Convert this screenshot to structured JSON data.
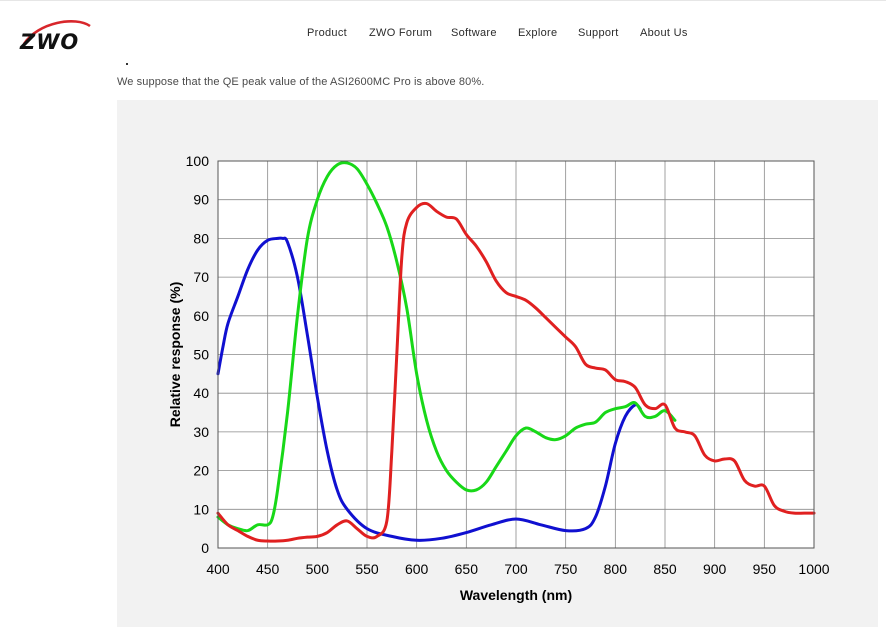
{
  "brand": {
    "logo_text": "ZWO",
    "logo_color": "#d8262b"
  },
  "nav": {
    "items": [
      {
        "label": "Product"
      },
      {
        "label": "ZWO Forum"
      },
      {
        "label": "Software"
      },
      {
        "label": "Explore"
      },
      {
        "label": "Support"
      },
      {
        "label": "About Us"
      }
    ]
  },
  "content": {
    "caption": "We suppose that the QE peak value of the ASI2600MC Pro is above 80%."
  },
  "chart_data": {
    "type": "line",
    "xlabel": "Wavelength (nm)",
    "ylabel": "Relative response (%)",
    "xlim": [
      400,
      1000
    ],
    "ylim": [
      0,
      100
    ],
    "xticks": [
      400,
      450,
      500,
      550,
      600,
      650,
      700,
      750,
      800,
      850,
      900,
      950,
      1000
    ],
    "yticks": [
      0,
      10,
      20,
      30,
      40,
      50,
      60,
      70,
      80,
      90,
      100
    ],
    "grid": true,
    "legend": "none",
    "series": [
      {
        "color": "#1010d0",
        "points": [
          [
            400,
            45
          ],
          [
            405,
            52
          ],
          [
            410,
            58
          ],
          [
            420,
            65
          ],
          [
            430,
            72
          ],
          [
            440,
            77
          ],
          [
            450,
            79.5
          ],
          [
            460,
            80
          ],
          [
            465,
            80
          ],
          [
            470,
            79
          ],
          [
            480,
            70
          ],
          [
            490,
            55
          ],
          [
            500,
            39
          ],
          [
            510,
            25
          ],
          [
            520,
            15
          ],
          [
            530,
            10
          ],
          [
            550,
            5
          ],
          [
            575,
            3
          ],
          [
            600,
            2
          ],
          [
            625,
            2.5
          ],
          [
            650,
            4
          ],
          [
            675,
            6
          ],
          [
            700,
            7.5
          ],
          [
            725,
            6
          ],
          [
            750,
            4.5
          ],
          [
            770,
            5
          ],
          [
            780,
            8
          ],
          [
            790,
            16
          ],
          [
            800,
            27
          ],
          [
            810,
            34
          ],
          [
            820,
            37
          ],
          [
            825,
            36
          ]
        ]
      },
      {
        "color": "#18d818",
        "points": [
          [
            400,
            8
          ],
          [
            410,
            6
          ],
          [
            420,
            5
          ],
          [
            430,
            4.5
          ],
          [
            440,
            6
          ],
          [
            450,
            6
          ],
          [
            455,
            8
          ],
          [
            460,
            15
          ],
          [
            470,
            35
          ],
          [
            480,
            60
          ],
          [
            490,
            80
          ],
          [
            500,
            90
          ],
          [
            510,
            96
          ],
          [
            520,
            99
          ],
          [
            530,
            99.5
          ],
          [
            540,
            98
          ],
          [
            550,
            94
          ],
          [
            560,
            89
          ],
          [
            570,
            83
          ],
          [
            580,
            74
          ],
          [
            590,
            62
          ],
          [
            600,
            45
          ],
          [
            610,
            33
          ],
          [
            620,
            25
          ],
          [
            630,
            20
          ],
          [
            640,
            17
          ],
          [
            650,
            15
          ],
          [
            660,
            15
          ],
          [
            670,
            17
          ],
          [
            680,
            21
          ],
          [
            690,
            25
          ],
          [
            700,
            29
          ],
          [
            710,
            31
          ],
          [
            720,
            30
          ],
          [
            730,
            28.5
          ],
          [
            740,
            28
          ],
          [
            750,
            29
          ],
          [
            760,
            31
          ],
          [
            770,
            32
          ],
          [
            780,
            32.5
          ],
          [
            790,
            35
          ],
          [
            800,
            36
          ],
          [
            810,
            36.5
          ],
          [
            820,
            37.5
          ],
          [
            830,
            34
          ],
          [
            840,
            34
          ],
          [
            850,
            35.5
          ],
          [
            860,
            33
          ]
        ]
      },
      {
        "color": "#e02020",
        "points": [
          [
            400,
            9
          ],
          [
            410,
            6
          ],
          [
            420,
            4.5
          ],
          [
            430,
            3
          ],
          [
            440,
            2
          ],
          [
            450,
            1.8
          ],
          [
            460,
            1.8
          ],
          [
            470,
            2
          ],
          [
            480,
            2.5
          ],
          [
            490,
            2.8
          ],
          [
            500,
            3
          ],
          [
            510,
            4
          ],
          [
            520,
            6
          ],
          [
            530,
            7
          ],
          [
            540,
            5
          ],
          [
            550,
            3
          ],
          [
            560,
            3
          ],
          [
            570,
            7
          ],
          [
            575,
            25
          ],
          [
            580,
            50
          ],
          [
            585,
            75
          ],
          [
            590,
            84
          ],
          [
            600,
            88
          ],
          [
            610,
            89
          ],
          [
            620,
            87
          ],
          [
            630,
            85.5
          ],
          [
            640,
            85
          ],
          [
            650,
            81
          ],
          [
            660,
            78
          ],
          [
            670,
            74
          ],
          [
            680,
            69
          ],
          [
            690,
            66
          ],
          [
            700,
            65
          ],
          [
            710,
            64
          ],
          [
            720,
            62
          ],
          [
            730,
            59.5
          ],
          [
            740,
            57
          ],
          [
            750,
            54.5
          ],
          [
            760,
            52
          ],
          [
            770,
            47.5
          ],
          [
            780,
            46.5
          ],
          [
            790,
            46
          ],
          [
            800,
            43.5
          ],
          [
            810,
            43
          ],
          [
            820,
            41.5
          ],
          [
            830,
            37
          ],
          [
            840,
            36
          ],
          [
            850,
            37
          ],
          [
            860,
            31
          ],
          [
            870,
            30
          ],
          [
            880,
            29
          ],
          [
            890,
            24
          ],
          [
            900,
            22.5
          ],
          [
            910,
            23
          ],
          [
            920,
            22.5
          ],
          [
            930,
            17.5
          ],
          [
            940,
            16
          ],
          [
            950,
            16
          ],
          [
            960,
            11
          ],
          [
            970,
            9.5
          ],
          [
            980,
            9
          ],
          [
            990,
            9
          ],
          [
            1000,
            9
          ]
        ]
      }
    ]
  }
}
